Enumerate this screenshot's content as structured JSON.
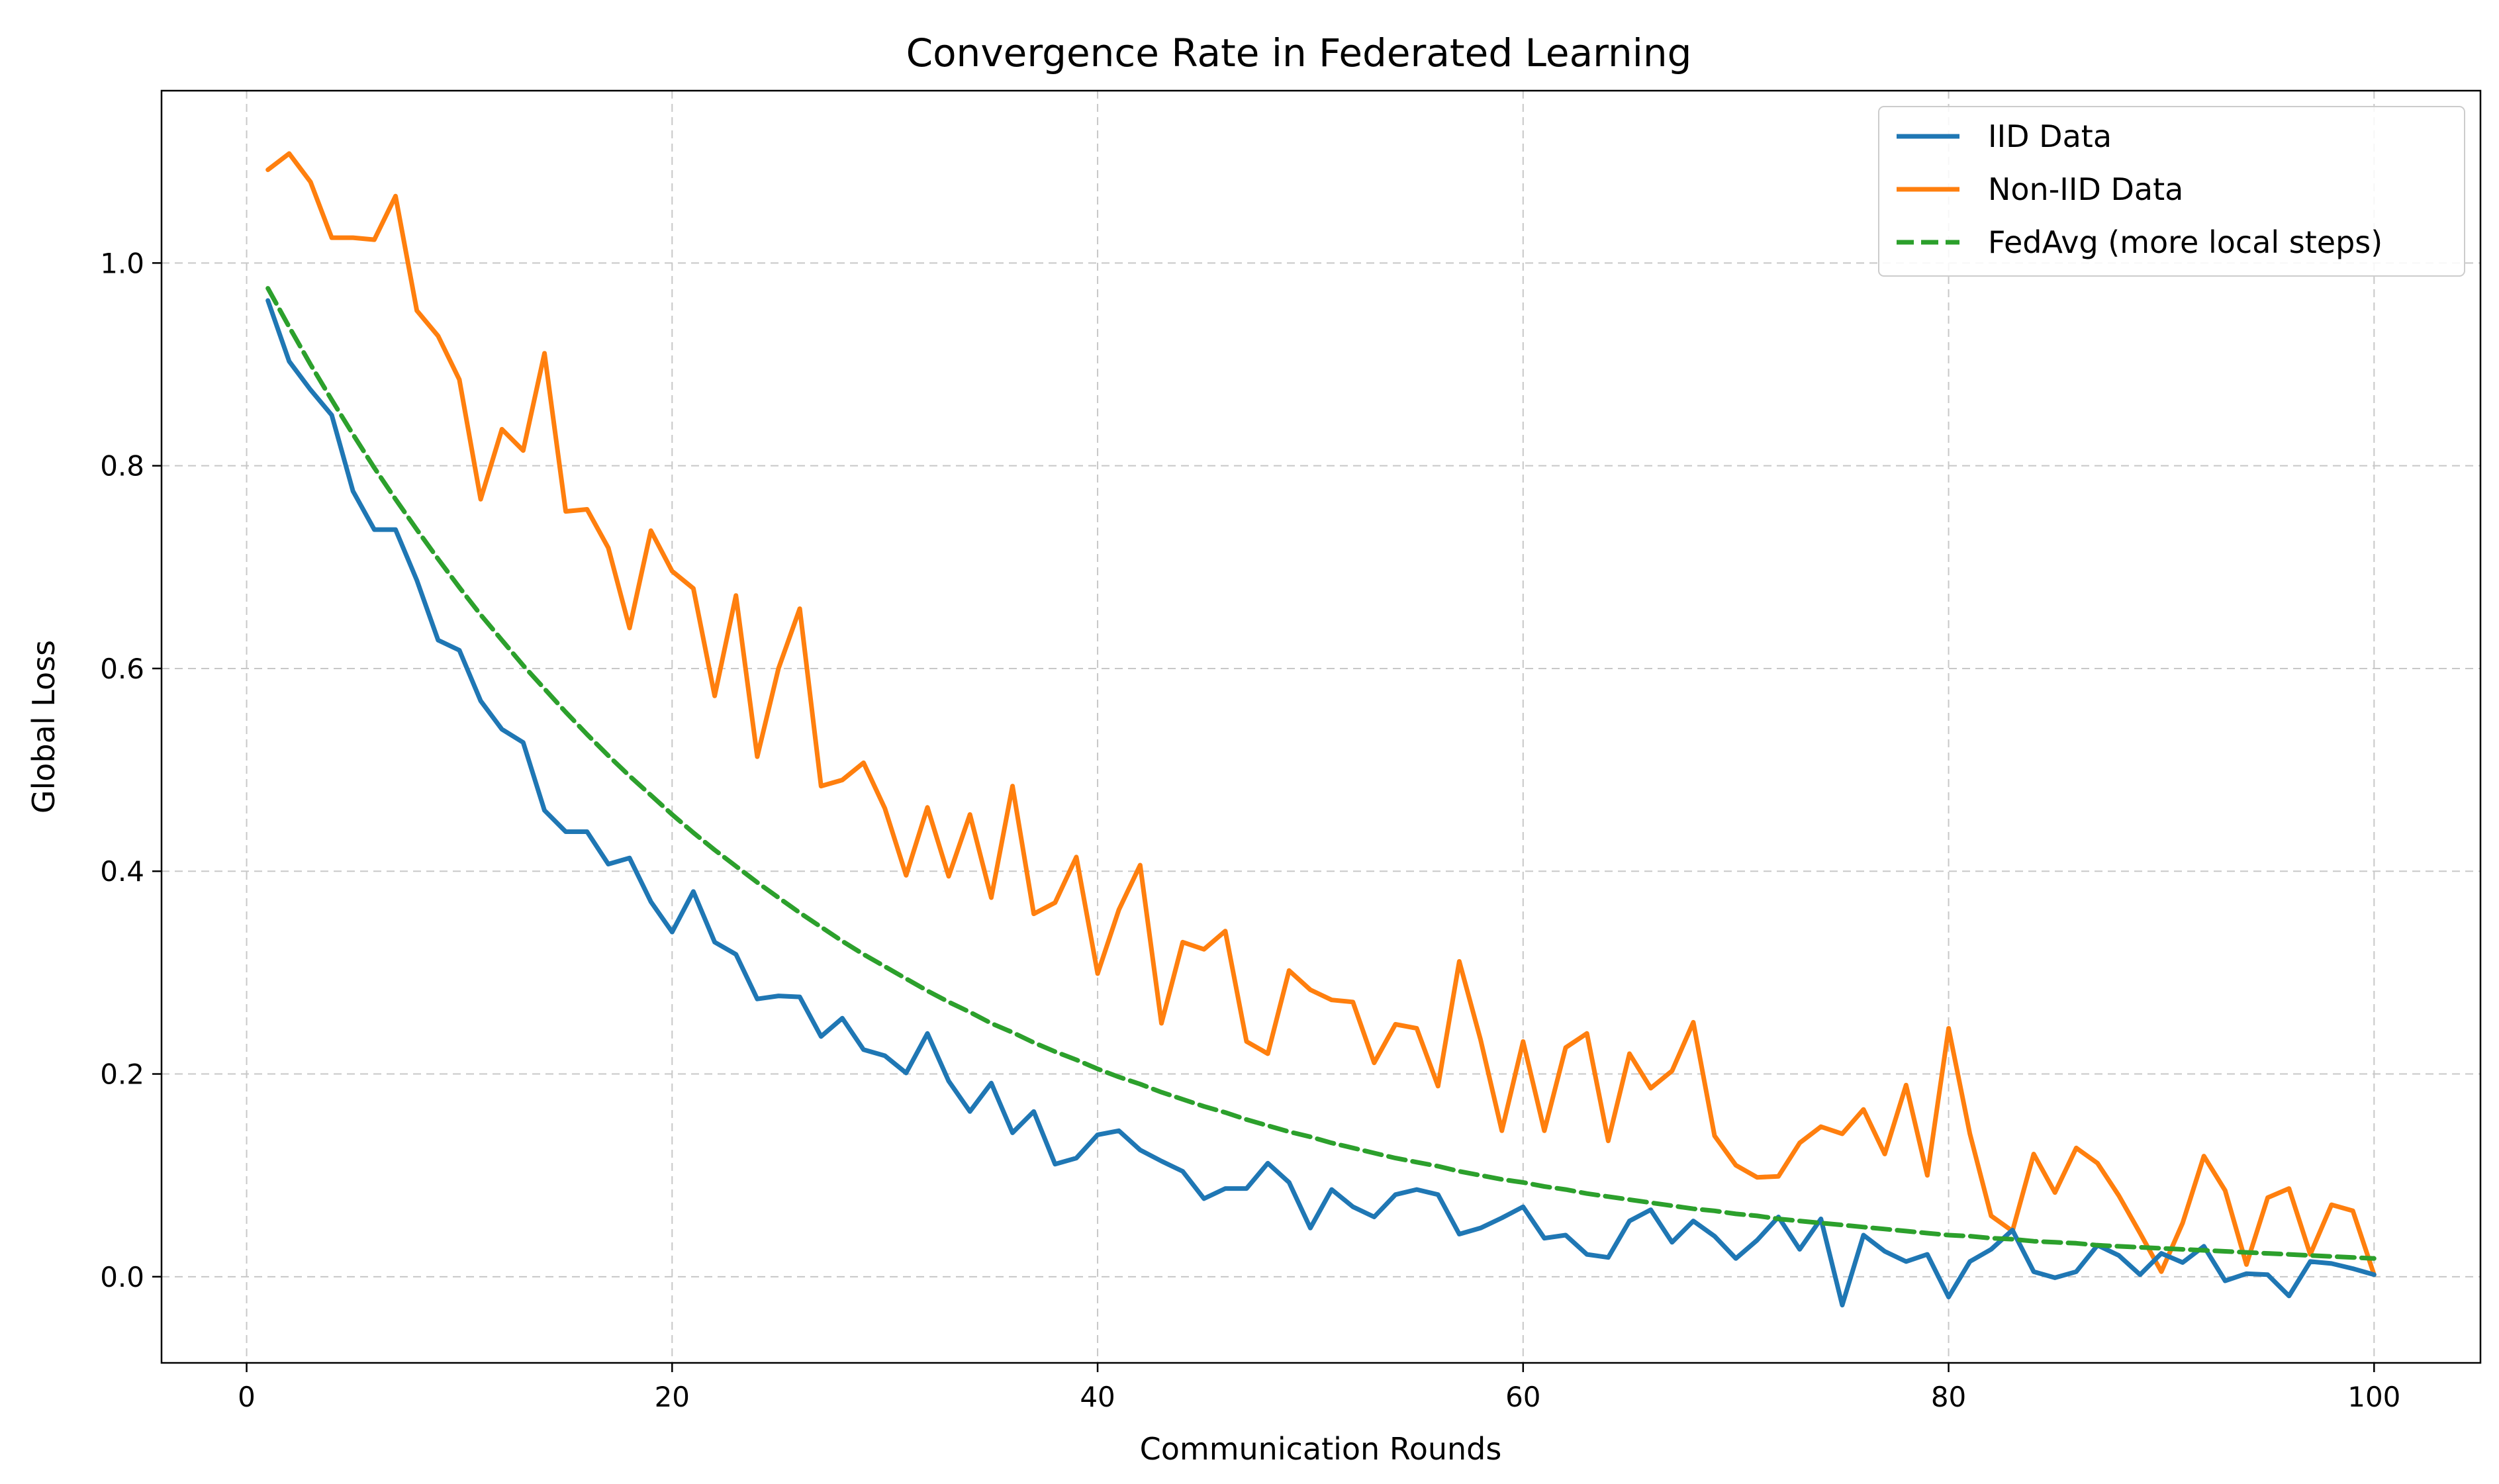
{
  "chart_data": {
    "type": "line",
    "title": "Convergence Rate in Federated Learning",
    "xlabel": "Communication Rounds",
    "ylabel": "Global Loss",
    "xlim": [
      -4,
      105
    ],
    "ylim": [
      -0.085,
      1.17
    ],
    "xticks": [
      0,
      20,
      40,
      60,
      80,
      100
    ],
    "yticks": [
      0.0,
      0.2,
      0.4,
      0.6,
      0.8,
      1.0
    ],
    "xtick_labels": [
      "0",
      "20",
      "40",
      "60",
      "80",
      "100"
    ],
    "ytick_labels": [
      "0.0",
      "0.2",
      "0.4",
      "0.6",
      "0.8",
      "1.0"
    ],
    "grid": true,
    "legend_position": "top-right",
    "x": [
      1,
      2,
      3,
      4,
      5,
      6,
      7,
      8,
      9,
      10,
      11,
      12,
      13,
      14,
      15,
      16,
      17,
      18,
      19,
      20,
      21,
      22,
      23,
      24,
      25,
      26,
      27,
      28,
      29,
      30,
      31,
      32,
      33,
      34,
      35,
      36,
      37,
      38,
      39,
      40,
      41,
      42,
      43,
      44,
      45,
      46,
      47,
      48,
      49,
      50,
      51,
      52,
      53,
      54,
      55,
      56,
      57,
      58,
      59,
      60,
      61,
      62,
      63,
      64,
      65,
      66,
      67,
      68,
      69,
      70,
      71,
      72,
      73,
      74,
      75,
      76,
      77,
      78,
      79,
      80,
      81,
      82,
      83,
      84,
      85,
      86,
      87,
      88,
      89,
      90,
      91,
      92,
      93,
      94,
      95,
      96,
      97,
      98,
      99,
      100
    ],
    "series": [
      {
        "name": "IID Data",
        "color": "#1f77b4",
        "style": "solid",
        "values": [
          0.963,
          0.903,
          0.875,
          0.85,
          0.775,
          0.737,
          0.737,
          0.687,
          0.628,
          0.618,
          0.568,
          0.54,
          0.527,
          0.46,
          0.439,
          0.439,
          0.407,
          0.413,
          0.37,
          0.34,
          0.38,
          0.33,
          0.318,
          0.274,
          0.277,
          0.276,
          0.237,
          0.255,
          0.224,
          0.218,
          0.201,
          0.24,
          0.193,
          0.163,
          0.191,
          0.142,
          0.163,
          0.111,
          0.117,
          0.14,
          0.144,
          0.125,
          0.114,
          0.104,
          0.077,
          0.087,
          0.087,
          0.112,
          0.093,
          0.048,
          0.086,
          0.069,
          0.059,
          0.081,
          0.086,
          0.081,
          0.042,
          0.048,
          0.058,
          0.069,
          0.038,
          0.041,
          0.022,
          0.019,
          0.055,
          0.066,
          0.034,
          0.055,
          0.04,
          0.018,
          0.036,
          0.059,
          0.027,
          0.057,
          -0.028,
          0.041,
          0.025,
          0.015,
          0.022,
          -0.02,
          0.015,
          0.027,
          0.046,
          0.005,
          -0.001,
          0.005,
          0.031,
          0.021,
          0.002,
          0.023,
          0.014,
          0.03,
          -0.004,
          0.003,
          0.002,
          -0.019,
          0.015,
          0.013,
          0.008,
          0.002
        ]
      },
      {
        "name": "Non-IID Data",
        "color": "#ff7f0e",
        "style": "solid",
        "values": [
          1.092,
          1.108,
          1.08,
          1.025,
          1.025,
          1.023,
          1.066,
          0.953,
          0.928,
          0.885,
          0.767,
          0.836,
          0.815,
          0.911,
          0.755,
          0.757,
          0.719,
          0.64,
          0.736,
          0.696,
          0.679,
          0.573,
          0.672,
          0.513,
          0.6,
          0.659,
          0.484,
          0.49,
          0.507,
          0.462,
          0.396,
          0.463,
          0.395,
          0.456,
          0.374,
          0.484,
          0.358,
          0.369,
          0.414,
          0.299,
          0.362,
          0.406,
          0.25,
          0.33,
          0.323,
          0.341,
          0.232,
          0.22,
          0.302,
          0.283,
          0.273,
          0.271,
          0.211,
          0.249,
          0.245,
          0.188,
          0.311,
          0.234,
          0.144,
          0.232,
          0.144,
          0.226,
          0.24,
          0.134,
          0.22,
          0.186,
          0.203,
          0.251,
          0.139,
          0.11,
          0.098,
          0.099,
          0.132,
          0.148,
          0.141,
          0.165,
          0.121,
          0.189,
          0.1,
          0.245,
          0.141,
          0.06,
          0.045,
          0.121,
          0.083,
          0.127,
          0.112,
          0.08,
          0.043,
          0.005,
          0.053,
          0.119,
          0.085,
          0.012,
          0.078,
          0.087,
          0.022,
          0.071,
          0.065,
          0.002
        ]
      },
      {
        "name": "FedAvg (more local steps)",
        "color": "#2ca02c",
        "style": "dashed",
        "values": [
          0.975,
          0.937,
          0.9,
          0.865,
          0.831,
          0.798,
          0.767,
          0.737,
          0.708,
          0.68,
          0.653,
          0.628,
          0.603,
          0.58,
          0.557,
          0.535,
          0.514,
          0.494,
          0.475,
          0.456,
          0.438,
          0.421,
          0.405,
          0.389,
          0.374,
          0.359,
          0.345,
          0.331,
          0.318,
          0.306,
          0.294,
          0.282,
          0.271,
          0.261,
          0.25,
          0.241,
          0.231,
          0.222,
          0.214,
          0.205,
          0.197,
          0.19,
          0.182,
          0.175,
          0.168,
          0.162,
          0.155,
          0.149,
          0.143,
          0.138,
          0.132,
          0.127,
          0.122,
          0.117,
          0.113,
          0.109,
          0.104,
          0.1,
          0.096,
          0.093,
          0.089,
          0.086,
          0.082,
          0.079,
          0.076,
          0.073,
          0.07,
          0.067,
          0.065,
          0.062,
          0.06,
          0.057,
          0.055,
          0.053,
          0.051,
          0.049,
          0.047,
          0.045,
          0.043,
          0.041,
          0.04,
          0.038,
          0.037,
          0.035,
          0.034,
          0.033,
          0.031,
          0.03,
          0.029,
          0.028,
          0.027,
          0.026,
          0.025,
          0.024,
          0.023,
          0.022,
          0.021,
          0.02,
          0.019,
          0.018
        ]
      }
    ]
  }
}
